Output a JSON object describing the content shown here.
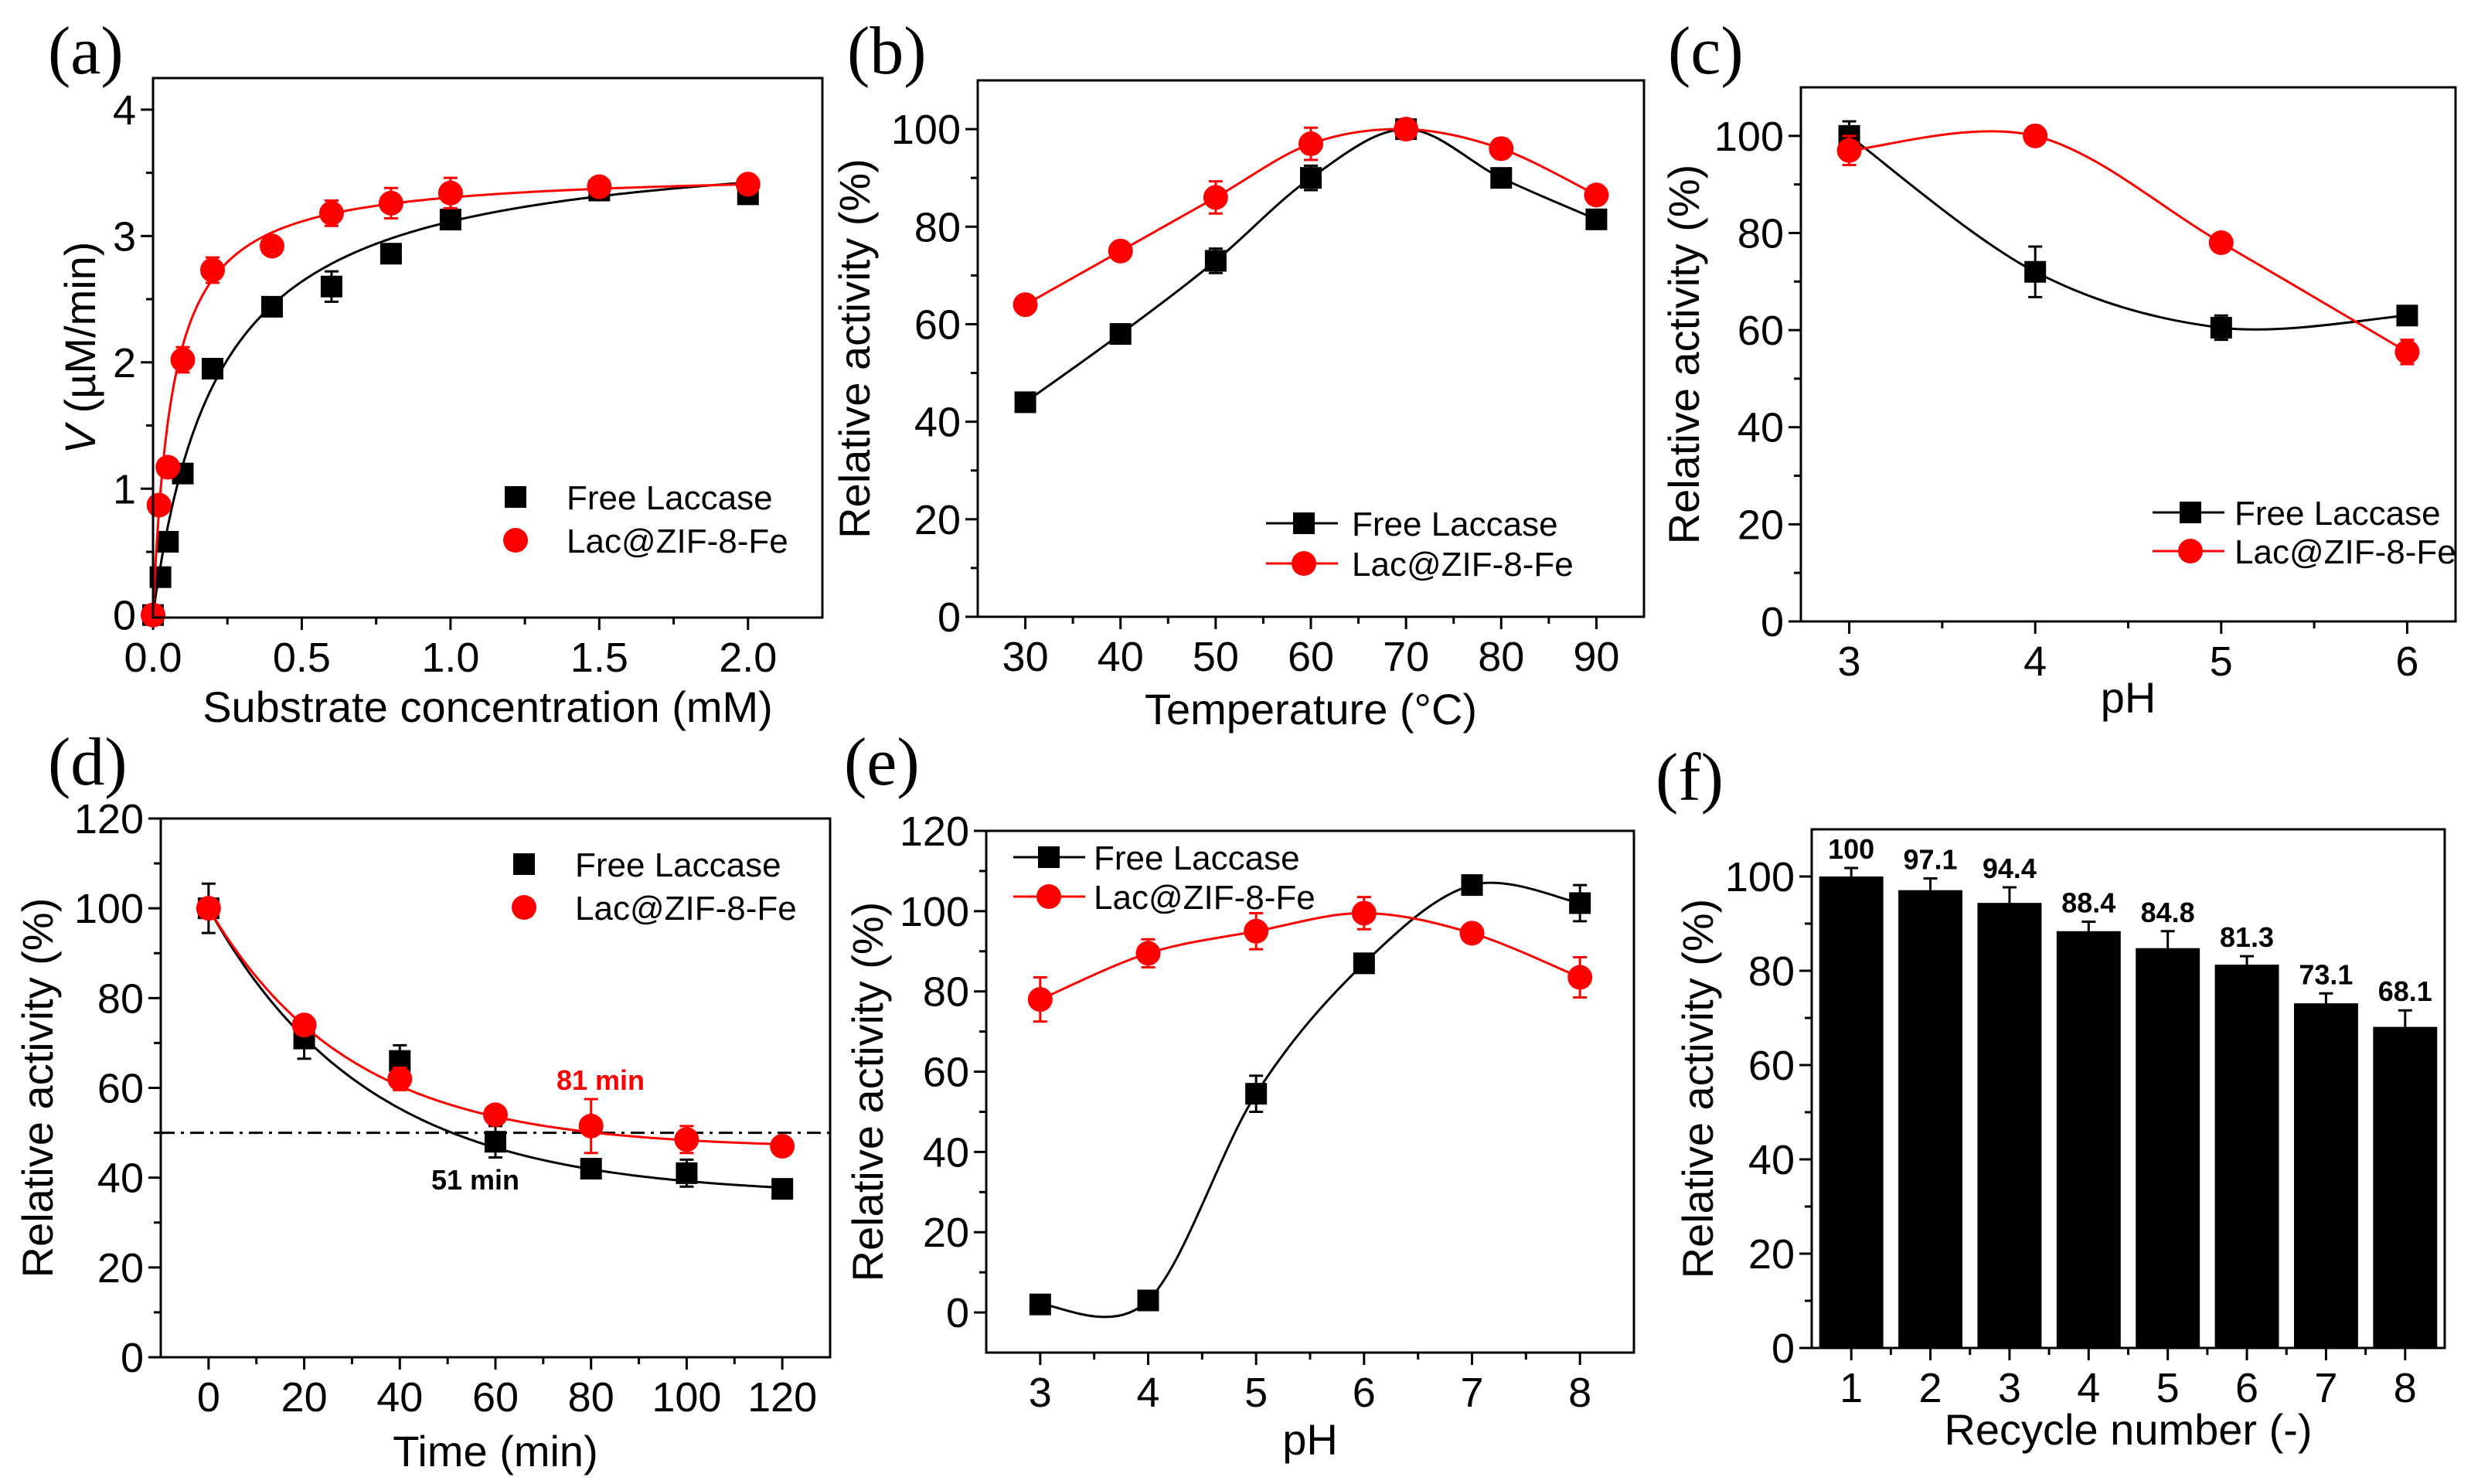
{
  "chart_data": [
    {
      "panel": "(a)",
      "type": "scatter",
      "xlabel": "Substrate concentration (mM)",
      "ylabel_var": "V",
      "ylabel": " (µM/min)",
      "xlim": [
        0,
        2.25
      ],
      "ylim": [
        -0.02,
        4.25
      ],
      "xticks": [
        0,
        0.5,
        1.0,
        1.5,
        2.0
      ],
      "xtick_labels": [
        "0.0",
        "0.5",
        "1.0",
        "1.5",
        "2.0"
      ],
      "yticks": [
        0,
        1,
        2,
        3,
        4
      ],
      "ytick_labels": [
        "0",
        "1",
        "2",
        "3",
        "4"
      ],
      "legend": "bottom-right",
      "grid": false,
      "series": [
        {
          "name": "Free Laccase",
          "color": "#000000",
          "marker": "square",
          "x": [
            0,
            0.025,
            0.05,
            0.1,
            0.2,
            0.4,
            0.6,
            0.8,
            1.0,
            1.5,
            2.0
          ],
          "y": [
            0,
            0.3,
            0.58,
            1.12,
            1.95,
            2.44,
            2.6,
            2.86,
            3.13,
            3.36,
            3.33
          ],
          "err": [
            0,
            0,
            0,
            0,
            0.04,
            0.05,
            0.12,
            0.05,
            0.05,
            0.06,
            0.04
          ],
          "fit": {
            "model": "michaelis-menten",
            "Vmax": 3.8,
            "Km": 0.22
          }
        },
        {
          "name": "Lac@ZIF-8-Fe",
          "color": "#ff0000",
          "marker": "circle",
          "x": [
            0,
            0.02,
            0.05,
            0.1,
            0.2,
            0.4,
            0.6,
            0.8,
            1.0,
            1.5,
            2.0
          ],
          "y": [
            0,
            0.87,
            1.17,
            2.02,
            2.73,
            2.92,
            3.18,
            3.26,
            3.34,
            3.39,
            3.41
          ],
          "err": [
            0,
            0.04,
            0.04,
            0.1,
            0.1,
            0.04,
            0.1,
            0.12,
            0.12,
            0.04,
            0.03
          ],
          "fit": {
            "model": "michaelis-menten",
            "Vmax": 3.52,
            "Km": 0.065
          }
        }
      ]
    },
    {
      "panel": "(b)",
      "type": "line",
      "xlabel": "Temperature (°C)",
      "ylabel": "Relative activity (%)",
      "xlim": [
        25,
        95
      ],
      "ylim": [
        0,
        110
      ],
      "xticks": [
        30,
        40,
        50,
        60,
        70,
        80,
        90
      ],
      "xtick_labels": [
        "30",
        "40",
        "50",
        "60",
        "70",
        "80",
        "90"
      ],
      "yticks": [
        0,
        20,
        40,
        60,
        80,
        100
      ],
      "ytick_labels": [
        "0",
        "20",
        "40",
        "60",
        "80",
        "100"
      ],
      "legend": "bottom-right",
      "grid": false,
      "series": [
        {
          "name": "Free Laccase",
          "color": "#000000",
          "marker": "square",
          "x": [
            30,
            40,
            50,
            60,
            70,
            80,
            90
          ],
          "y": [
            44,
            58,
            73,
            90,
            100,
            90,
            81.5
          ],
          "err": [
            1,
            1,
            2.5,
            2.5,
            1.5,
            1.5,
            1.5
          ]
        },
        {
          "name": "Lac@ZIF-8-Fe",
          "color": "#ff0000",
          "marker": "circle",
          "x": [
            30,
            40,
            50,
            60,
            70,
            80,
            90
          ],
          "y": [
            64,
            75,
            86,
            97,
            100,
            96,
            86.5
          ],
          "err": [
            1,
            1,
            3.3,
            3.3,
            1.5,
            2,
            1
          ]
        }
      ]
    },
    {
      "panel": "(c)",
      "type": "line",
      "xlabel": "pH",
      "ylabel": "Relative activity (%)",
      "xlim": [
        2.74,
        6.26
      ],
      "ylim": [
        0,
        110
      ],
      "xticks": [
        3,
        4,
        5,
        6
      ],
      "xtick_labels": [
        "3",
        "4",
        "5",
        "6"
      ],
      "yticks": [
        0,
        20,
        40,
        60,
        80,
        100
      ],
      "ytick_labels": [
        "0",
        "20",
        "40",
        "60",
        "80",
        "100"
      ],
      "legend": "bottom-right",
      "grid": false,
      "series": [
        {
          "name": "Free Laccase",
          "color": "#000000",
          "marker": "square",
          "x": [
            3,
            4,
            5,
            6
          ],
          "y": [
            100,
            72,
            60.5,
            63
          ],
          "err": [
            3,
            5.2,
            2.5,
            1
          ]
        },
        {
          "name": "Lac@ZIF-8-Fe",
          "color": "#ff0000",
          "marker": "circle",
          "x": [
            3,
            4,
            5,
            6
          ],
          "y": [
            97,
            100,
            78,
            55.5
          ],
          "err": [
            3,
            1,
            1,
            2.5
          ]
        }
      ]
    },
    {
      "panel": "(d)",
      "type": "scatter",
      "xlabel": "Time (min)",
      "ylabel": "Relative activity (%)",
      "xlim": [
        -10,
        130
      ],
      "ylim": [
        0,
        120
      ],
      "xticks": [
        0,
        20,
        40,
        60,
        80,
        100,
        120
      ],
      "xtick_labels": [
        "0",
        "20",
        "40",
        "60",
        "80",
        "100",
        "120"
      ],
      "yticks": [
        0,
        20,
        40,
        60,
        80,
        100,
        120
      ],
      "ytick_labels": [
        "0",
        "20",
        "40",
        "60",
        "80",
        "100",
        "120"
      ],
      "legend": "top-right",
      "grid": false,
      "reference_line": {
        "y": 50,
        "style": "dash-dot"
      },
      "annotations": [
        {
          "text": "81 min",
          "color": "#ff0000",
          "x": 80
        },
        {
          "text": "51 min",
          "color": "#000000",
          "x": 51
        }
      ],
      "series": [
        {
          "name": "Free Laccase",
          "color": "#000000",
          "marker": "square",
          "x": [
            0,
            20,
            40,
            60,
            80,
            100,
            120
          ],
          "y": [
            100,
            71,
            66,
            48,
            42,
            41,
            37.5
          ],
          "err": [
            5.5,
            4.5,
            3.5,
            3.5,
            1.5,
            3,
            1.5
          ],
          "fit": {
            "model": "exp-decay",
            "plateau": 36,
            "amplitude": 64,
            "tau": 33.5
          }
        },
        {
          "name": "Lac@ZIF-8-Fe",
          "color": "#ff0000",
          "marker": "circle",
          "x": [
            0,
            20,
            40,
            60,
            80,
            100,
            120
          ],
          "y": [
            100,
            74,
            62,
            54,
            51.5,
            48.5,
            47
          ],
          "err": [
            1.5,
            1.5,
            2.5,
            1,
            6,
            3,
            1.5
          ],
          "fit": {
            "model": "exp-decay",
            "plateau": 46.5,
            "amplitude": 53.5,
            "tau": 29.7
          }
        }
      ]
    },
    {
      "panel": "(e)",
      "type": "line",
      "xlabel": "pH",
      "ylabel": "Relative activity (%)",
      "xlim": [
        2.5,
        8.5
      ],
      "ylim": [
        -10,
        120
      ],
      "xticks": [
        3,
        4,
        5,
        6,
        7,
        8
      ],
      "xtick_labels": [
        "3",
        "4",
        "5",
        "6",
        "7",
        "8"
      ],
      "yticks": [
        0,
        20,
        40,
        60,
        80,
        100,
        120
      ],
      "ytick_labels": [
        "0",
        "20",
        "40",
        "60",
        "80",
        "100",
        "120"
      ],
      "legend": "top-left",
      "grid": false,
      "series": [
        {
          "name": "Free Laccase",
          "color": "#000000",
          "marker": "square",
          "x": [
            3,
            4,
            5,
            6,
            7,
            8
          ],
          "y": [
            2,
            3,
            54.5,
            87,
            106.5,
            102
          ],
          "err": [
            0,
            1,
            4.5,
            1.5,
            1,
            4.5
          ]
        },
        {
          "name": "Lac@ZIF-8-Fe",
          "color": "#ff0000",
          "marker": "circle",
          "x": [
            3,
            4,
            5,
            6,
            7,
            8
          ],
          "y": [
            78,
            89.5,
            95,
            99.5,
            94.5,
            83.5
          ],
          "err": [
            5.5,
            3.5,
            4.5,
            4,
            1,
            5
          ]
        }
      ]
    },
    {
      "panel": "(f)",
      "type": "bar",
      "xlabel": "Recycle number (-)",
      "ylabel": "Relative activity (%)",
      "xlim": [
        0.5,
        8.5
      ],
      "ylim": [
        0,
        110
      ],
      "categories": [
        "1",
        "2",
        "3",
        "4",
        "5",
        "6",
        "7",
        "8"
      ],
      "yticks": [
        0,
        20,
        40,
        60,
        80,
        100
      ],
      "ytick_labels": [
        "0",
        "20",
        "40",
        "60",
        "80",
        "100"
      ],
      "grid": false,
      "bar_color": "#000000",
      "values": [
        100,
        97.1,
        94.4,
        88.4,
        84.8,
        81.3,
        73.1,
        68.1
      ],
      "value_labels": [
        "100",
        "97.1",
        "94.4",
        "88.4",
        "84.8",
        "81.3",
        "73.1",
        "68.1"
      ],
      "err": [
        1.8,
        2.5,
        3.3,
        2,
        3.6,
        1.8,
        2.1,
        3.5
      ]
    }
  ]
}
